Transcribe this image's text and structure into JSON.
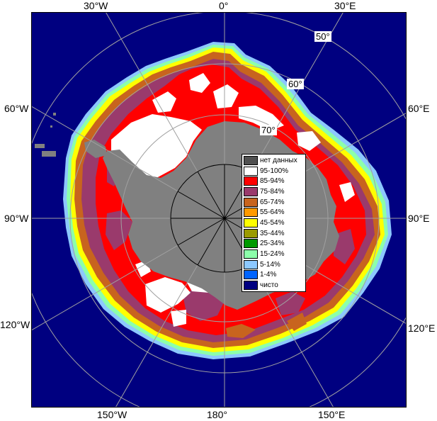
{
  "longitude_labels": {
    "top": [
      "30°W",
      "0°",
      "30°E"
    ],
    "left": [
      "60°W",
      "90°W",
      "120°W"
    ],
    "right": [
      "60°E",
      "90°E",
      "120°E"
    ],
    "bottom": [
      "150°W",
      "180°",
      "150°E"
    ]
  },
  "latitude_labels": [
    "50°",
    "60°",
    "70°"
  ],
  "legend": {
    "items": [
      {
        "label": "нет данных",
        "color": "#505050"
      },
      {
        "label": "95-100%",
        "color": "#ffffff"
      },
      {
        "label": "85-94%",
        "color": "#ff0000"
      },
      {
        "label": "75-84%",
        "color": "#9a3a6c"
      },
      {
        "label": "65-74%",
        "color": "#c8641e"
      },
      {
        "label": "55-64%",
        "color": "#ff9a00"
      },
      {
        "label": "45-54%",
        "color": "#ffff00"
      },
      {
        "label": "35-44%",
        "color": "#9a9a00"
      },
      {
        "label": "25-34%",
        "color": "#009a00"
      },
      {
        "label": "15-24%",
        "color": "#8cffaa"
      },
      {
        "label": "5-14%",
        "color": "#8cc8ff"
      },
      {
        "label": "1-4%",
        "color": "#0064ff"
      },
      {
        "label": "чисто",
        "color": "#000080"
      }
    ]
  },
  "colors": {
    "ocean": "#000080",
    "land": "#808080",
    "grid": "#a0a0a0",
    "pole_circle": "#000000"
  }
}
